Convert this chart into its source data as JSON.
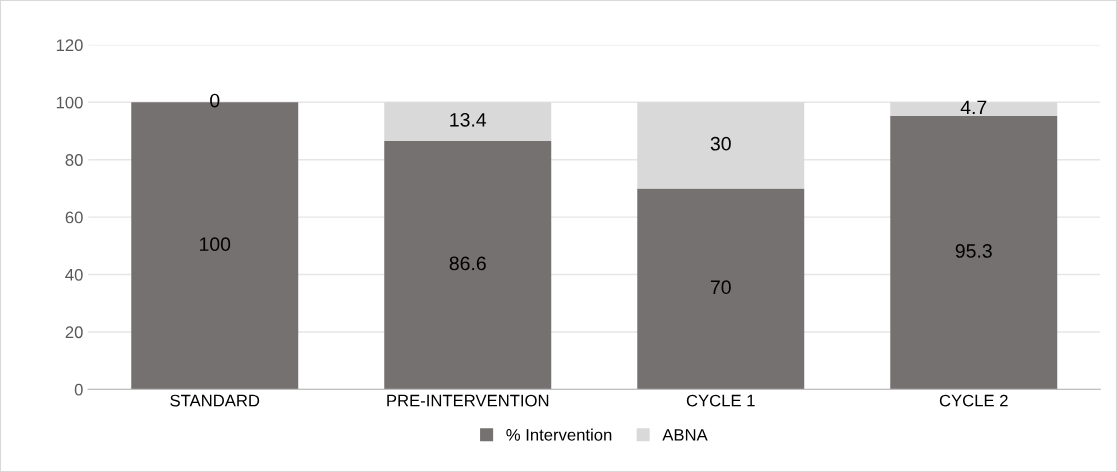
{
  "chart_data": {
    "type": "bar",
    "stacked": true,
    "categories": [
      "STANDARD",
      "PRE-INTERVENTION",
      "CYCLE 1",
      "CYCLE 2"
    ],
    "series": [
      {
        "name": "% Intervention",
        "color": "#767171",
        "values": [
          100,
          86.6,
          70,
          95.3
        ]
      },
      {
        "name": "ABNA",
        "color": "#d9d9d9",
        "values": [
          0,
          13.4,
          30,
          4.7
        ]
      }
    ],
    "ylim": [
      0,
      120
    ],
    "yticks": [
      0,
      20,
      40,
      60,
      80,
      100,
      120
    ],
    "grid": "y",
    "legend": "bottom",
    "data_labels": true
  }
}
